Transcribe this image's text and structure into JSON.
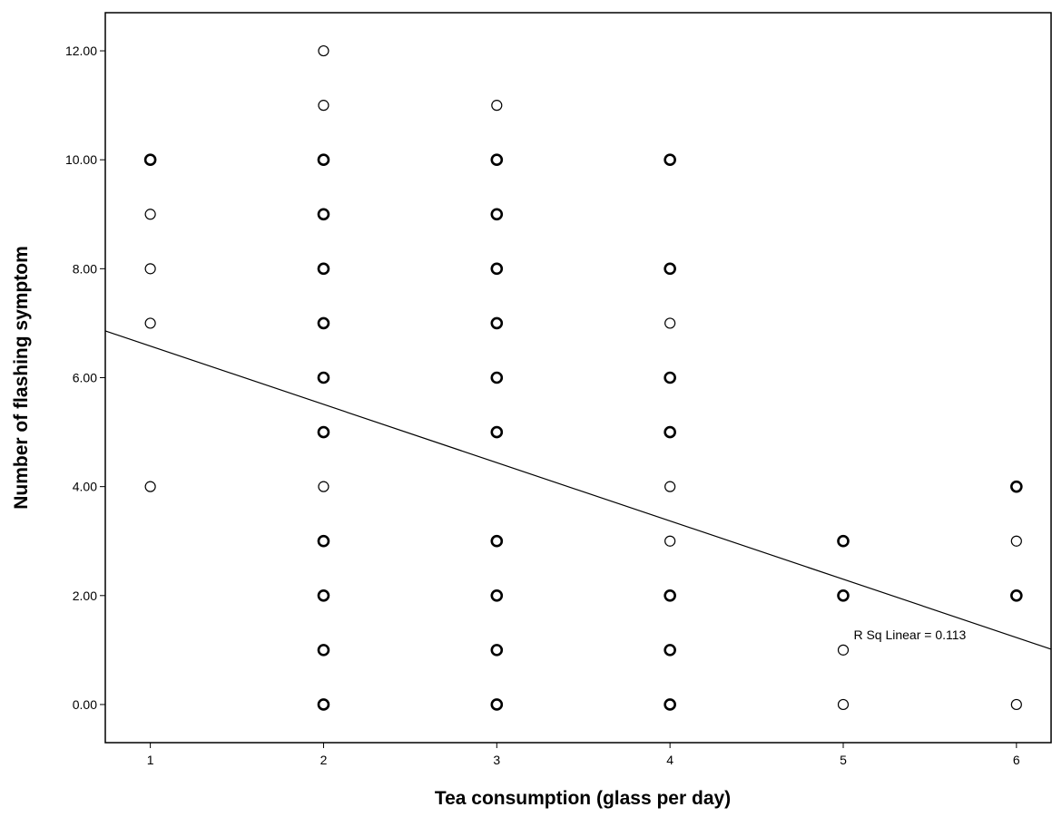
{
  "chart_data": {
    "type": "scatter",
    "title": "",
    "xlabel": "Tea consumption (glass per day)",
    "ylabel": "Number of flashing symptom",
    "xlim": [
      0.74,
      6.2
    ],
    "ylim": [
      -0.7,
      12.7
    ],
    "x_ticks": [
      1,
      2,
      3,
      4,
      5,
      6
    ],
    "x_tick_labels": [
      "1",
      "2",
      "3",
      "4",
      "5",
      "6"
    ],
    "y_ticks": [
      0,
      2,
      4,
      6,
      8,
      10,
      12
    ],
    "y_tick_labels": [
      "0.00",
      "2.00",
      "4.00",
      "6.00",
      "8.00",
      "10.00",
      "12.00"
    ],
    "grid": false,
    "series": [
      {
        "points": [
          {
            "x": 1,
            "y": 10,
            "multi": true
          },
          {
            "x": 1,
            "y": 9,
            "multi": false
          },
          {
            "x": 1,
            "y": 8,
            "multi": false
          },
          {
            "x": 1,
            "y": 7,
            "multi": false
          },
          {
            "x": 1,
            "y": 4,
            "multi": false
          },
          {
            "x": 2,
            "y": 12,
            "multi": false
          },
          {
            "x": 2,
            "y": 11,
            "multi": false
          },
          {
            "x": 2,
            "y": 10,
            "multi": true
          },
          {
            "x": 2,
            "y": 9,
            "multi": true
          },
          {
            "x": 2,
            "y": 8,
            "multi": true
          },
          {
            "x": 2,
            "y": 7,
            "multi": true
          },
          {
            "x": 2,
            "y": 6,
            "multi": true
          },
          {
            "x": 2,
            "y": 5,
            "multi": true
          },
          {
            "x": 2,
            "y": 4,
            "multi": false
          },
          {
            "x": 2,
            "y": 3,
            "multi": true
          },
          {
            "x": 2,
            "y": 2,
            "multi": true
          },
          {
            "x": 2,
            "y": 1,
            "multi": true
          },
          {
            "x": 2,
            "y": 0,
            "multi": true
          },
          {
            "x": 3,
            "y": 11,
            "multi": false
          },
          {
            "x": 3,
            "y": 10,
            "multi": true
          },
          {
            "x": 3,
            "y": 9,
            "multi": true
          },
          {
            "x": 3,
            "y": 8,
            "multi": true
          },
          {
            "x": 3,
            "y": 7,
            "multi": true
          },
          {
            "x": 3,
            "y": 6,
            "multi": true
          },
          {
            "x": 3,
            "y": 5,
            "multi": true
          },
          {
            "x": 3,
            "y": 3,
            "multi": true
          },
          {
            "x": 3,
            "y": 2,
            "multi": true
          },
          {
            "x": 3,
            "y": 1,
            "multi": true
          },
          {
            "x": 3,
            "y": 0,
            "multi": true
          },
          {
            "x": 4,
            "y": 10,
            "multi": true
          },
          {
            "x": 4,
            "y": 8,
            "multi": true
          },
          {
            "x": 4,
            "y": 7,
            "multi": false
          },
          {
            "x": 4,
            "y": 6,
            "multi": true
          },
          {
            "x": 4,
            "y": 5,
            "multi": true
          },
          {
            "x": 4,
            "y": 4,
            "multi": false
          },
          {
            "x": 4,
            "y": 3,
            "multi": false
          },
          {
            "x": 4,
            "y": 2,
            "multi": true
          },
          {
            "x": 4,
            "y": 1,
            "multi": true
          },
          {
            "x": 4,
            "y": 0,
            "multi": true
          },
          {
            "x": 5,
            "y": 3,
            "multi": true
          },
          {
            "x": 5,
            "y": 2,
            "multi": true
          },
          {
            "x": 5,
            "y": 1,
            "multi": false
          },
          {
            "x": 5,
            "y": 0,
            "multi": false
          },
          {
            "x": 6,
            "y": 4,
            "multi": true
          },
          {
            "x": 6,
            "y": 3,
            "multi": false
          },
          {
            "x": 6,
            "y": 2,
            "multi": true
          },
          {
            "x": 6,
            "y": 0,
            "multi": false
          }
        ]
      }
    ],
    "fit_line": {
      "type": "linear",
      "intercept": 7.65,
      "slope": -1.07
    },
    "annotations": [
      {
        "text": "R Sq Linear = 0.113",
        "x": 5.06,
        "y": 1.2
      }
    ],
    "colors": {
      "marker_stroke": "#000000",
      "marker_fill": "#ffffff",
      "line": "#000000"
    }
  }
}
